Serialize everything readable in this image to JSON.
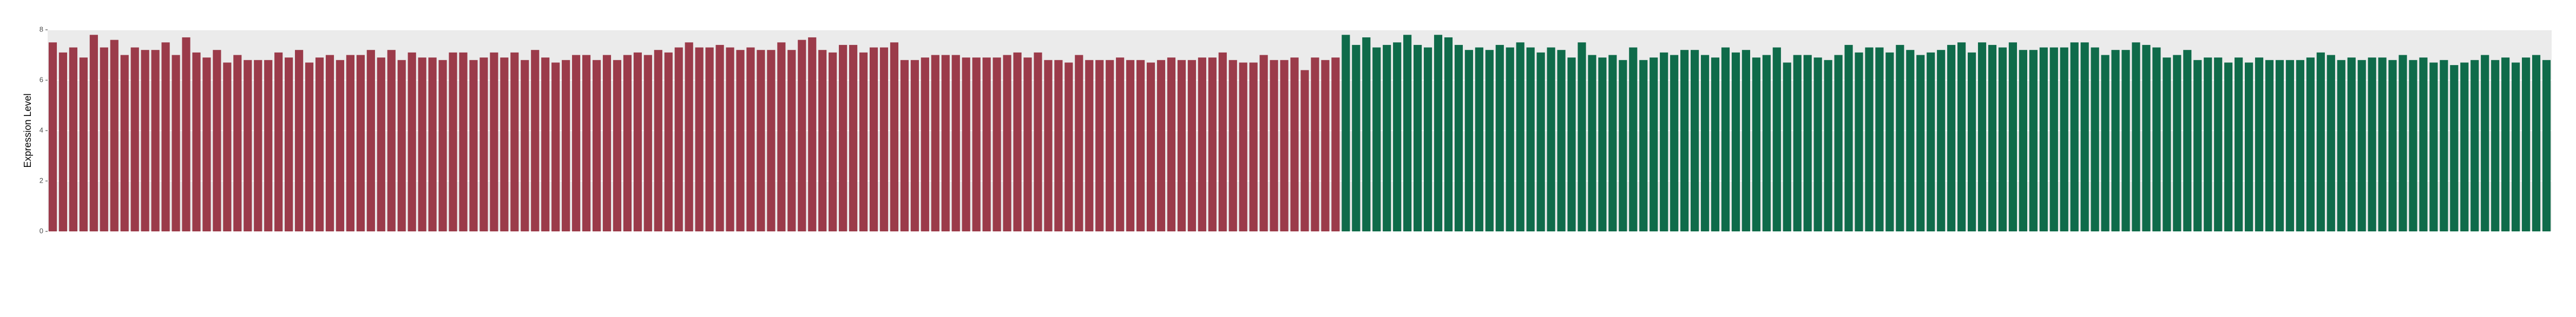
{
  "chart_data": {
    "type": "bar",
    "y_label": "Expression Level",
    "categories": [
      null,
      null,
      null,
      null,
      null,
      null,
      null,
      null,
      null,
      null,
      null,
      null,
      null,
      null,
      null,
      null,
      null,
      null,
      null,
      null,
      null,
      null,
      null,
      null,
      null,
      null,
      null,
      null,
      null,
      null,
      null,
      null,
      null,
      null,
      null,
      null,
      null,
      null,
      null,
      null,
      null,
      null,
      null,
      null,
      null,
      null,
      null,
      null,
      null,
      null,
      null,
      null,
      null,
      null,
      null,
      null,
      null,
      null,
      null,
      null,
      null,
      null,
      null,
      null,
      null,
      null,
      null,
      null,
      null,
      null,
      null,
      null,
      null,
      null,
      null,
      null,
      null,
      null,
      null,
      null,
      null,
      null,
      null,
      null,
      null,
      null,
      null,
      null,
      null,
      null,
      null,
      null,
      null,
      null,
      null,
      null,
      null,
      null,
      null,
      null,
      null,
      null,
      null,
      null,
      null,
      null,
      null,
      null,
      null,
      null,
      null,
      null,
      null,
      null,
      null,
      null,
      null,
      null,
      null,
      null,
      null,
      null,
      null,
      null,
      null,
      null,
      null,
      null,
      null,
      null,
      null,
      null,
      null,
      null,
      null,
      null,
      null,
      null,
      null,
      null,
      null,
      null,
      null,
      null,
      null,
      null,
      null,
      null,
      null,
      null,
      null,
      null,
      null,
      null,
      null,
      null,
      null,
      null,
      null,
      null,
      null,
      null,
      null,
      null,
      null,
      null,
      null,
      null,
      null,
      null,
      null,
      null,
      null,
      null,
      null,
      null,
      null,
      null,
      null,
      null,
      null,
      null,
      null,
      null,
      null,
      null,
      null,
      null,
      null,
      null,
      null,
      null,
      null,
      null,
      null,
      null,
      null,
      null,
      null,
      null,
      null,
      null,
      null,
      null,
      null,
      null,
      null,
      null,
      null,
      null,
      null,
      null,
      null,
      null,
      null,
      null,
      null,
      null,
      null,
      null,
      null,
      null,
      null,
      null,
      null,
      null,
      null,
      null,
      null,
      null,
      null,
      null,
      null,
      null,
      null,
      null,
      null,
      null,
      null,
      null,
      null,
      null,
      null,
      null
    ],
    "series": [
      {
        "color": "#9b3b4a",
        "values": [
          7.5,
          7.1,
          7.3,
          6.9,
          7.8,
          7.3,
          7.6,
          7.0,
          7.3,
          7.2,
          7.2,
          7.5,
          7.0,
          7.7,
          7.1,
          6.9,
          7.2,
          6.7,
          7.0,
          6.8,
          6.8,
          6.8,
          7.1,
          6.9,
          7.2,
          6.7,
          6.9,
          7.0,
          6.8,
          7.0,
          7.0,
          7.2,
          6.9,
          7.2,
          6.8,
          7.1,
          6.9,
          6.9,
          6.8,
          7.1,
          7.1,
          6.8,
          6.9,
          7.1,
          6.9,
          7.1,
          6.8,
          7.2,
          6.9,
          6.7,
          6.8,
          7.0,
          7.0,
          6.8,
          7.0,
          6.8,
          7.0,
          7.1,
          7.0,
          7.2,
          7.1,
          7.3,
          7.5,
          7.3,
          7.3,
          7.4,
          7.3,
          7.2,
          7.3,
          7.2,
          7.2,
          7.5,
          7.2,
          7.6,
          7.7,
          7.2,
          7.1,
          7.4,
          7.4,
          7.1,
          7.3,
          7.3,
          7.5,
          6.8,
          6.8,
          6.9,
          7.0,
          7.0,
          7.0,
          6.9,
          6.9,
          6.9,
          6.9,
          7.0,
          7.1,
          6.9,
          7.1,
          6.8,
          6.8,
          6.7,
          7.0,
          6.8,
          6.8,
          6.8,
          6.9,
          6.8,
          6.8,
          6.7,
          6.8,
          6.9,
          6.8,
          6.8,
          6.9,
          6.9,
          7.1,
          6.8,
          6.7,
          6.7,
          7.0,
          6.8,
          6.8,
          6.9,
          6.4,
          6.9,
          6.8,
          6.9,
          null,
          null,
          null,
          null,
          null,
          null,
          null,
          null,
          null,
          null,
          null,
          null,
          null,
          null,
          null,
          null,
          null,
          null,
          null,
          null,
          null,
          null,
          null,
          null,
          null,
          null,
          null,
          null,
          null,
          null,
          null,
          null,
          null,
          null,
          null,
          null,
          null,
          null,
          null,
          null,
          null,
          null,
          null,
          null,
          null,
          null,
          null,
          null,
          null,
          null,
          null,
          null,
          null,
          null,
          null,
          null,
          null,
          null,
          null,
          null,
          null,
          null,
          null,
          null,
          null,
          null,
          null,
          null,
          null,
          null,
          null,
          null,
          null,
          null,
          null,
          null,
          null,
          null,
          null,
          null,
          null,
          null,
          null,
          null,
          null,
          null,
          null,
          null,
          null,
          null,
          null,
          null,
          null,
          null,
          null,
          null,
          null,
          null,
          null,
          null,
          null,
          null,
          null,
          null,
          null,
          null,
          null,
          null,
          null,
          null,
          null,
          null,
          null,
          null,
          null,
          null,
          null,
          null
        ]
      },
      {
        "color": "#0f6b4a",
        "values": [
          null,
          null,
          null,
          null,
          null,
          null,
          null,
          null,
          null,
          null,
          null,
          null,
          null,
          null,
          null,
          null,
          null,
          null,
          null,
          null,
          null,
          null,
          null,
          null,
          null,
          null,
          null,
          null,
          null,
          null,
          null,
          null,
          null,
          null,
          null,
          null,
          null,
          null,
          null,
          null,
          null,
          null,
          null,
          null,
          null,
          null,
          null,
          null,
          null,
          null,
          null,
          null,
          null,
          null,
          null,
          null,
          null,
          null,
          null,
          null,
          null,
          null,
          null,
          null,
          null,
          null,
          null,
          null,
          null,
          null,
          null,
          null,
          null,
          null,
          null,
          null,
          null,
          null,
          null,
          null,
          null,
          null,
          null,
          null,
          null,
          null,
          null,
          null,
          null,
          null,
          null,
          null,
          null,
          null,
          null,
          null,
          null,
          null,
          null,
          null,
          null,
          null,
          null,
          null,
          null,
          null,
          null,
          null,
          null,
          null,
          null,
          null,
          null,
          null,
          null,
          null,
          null,
          null,
          null,
          null,
          null,
          null,
          null,
          null,
          null,
          null,
          7.8,
          7.4,
          7.7,
          7.3,
          7.4,
          7.5,
          7.8,
          7.4,
          7.3,
          7.8,
          7.7,
          7.4,
          7.2,
          7.3,
          7.2,
          7.4,
          7.3,
          7.5,
          7.3,
          7.1,
          7.3,
          7.2,
          6.9,
          7.5,
          7.0,
          6.9,
          7.0,
          6.8,
          7.3,
          6.8,
          6.9,
          7.1,
          7.0,
          7.2,
          7.2,
          7.0,
          6.9,
          7.3,
          7.1,
          7.2,
          6.9,
          7.0,
          7.3,
          6.7,
          7.0,
          7.0,
          6.9,
          6.8,
          7.0,
          7.4,
          7.1,
          7.3,
          7.3,
          7.1,
          7.4,
          7.2,
          7.0,
          7.1,
          7.2,
          7.4,
          7.5,
          7.1,
          7.5,
          7.4,
          7.3,
          7.5,
          7.2,
          7.2,
          7.3,
          7.3,
          7.3,
          7.5,
          7.5,
          7.3,
          7.0,
          7.2,
          7.2,
          7.5,
          7.4,
          7.3,
          6.9,
          7.0,
          7.2,
          6.8,
          6.9,
          6.9,
          6.7,
          6.9,
          6.7,
          6.9,
          6.8,
          6.8,
          6.8,
          6.8,
          6.9,
          7.1,
          7.0,
          6.8,
          6.9,
          6.8,
          6.9,
          6.9,
          6.8,
          7.0,
          6.8,
          6.9,
          6.7,
          6.8,
          6.6,
          6.7,
          6.8,
          7.0,
          6.8,
          6.9,
          6.7,
          6.9,
          7.0,
          6.8
        ]
      }
    ],
    "ylim": [
      0,
      8
    ],
    "yticks": [
      0,
      2,
      4,
      6,
      8
    ],
    "grid": true
  }
}
